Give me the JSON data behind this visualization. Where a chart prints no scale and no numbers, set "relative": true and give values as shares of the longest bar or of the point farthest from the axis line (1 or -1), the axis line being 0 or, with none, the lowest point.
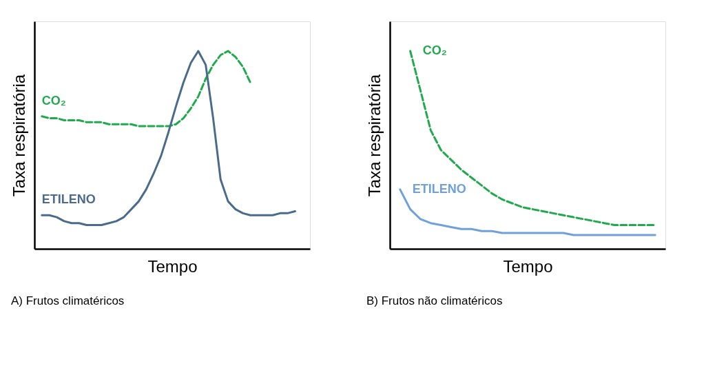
{
  "chart_data": [
    {
      "type": "line",
      "relative": true,
      "xlabel": "Tempo",
      "ylabel": "Taxa respiratória",
      "annotations": [
        "A) Frutos climatéricos"
      ],
      "tick_labels": false,
      "grid": false,
      "categories": [
        null,
        null,
        null,
        null,
        null,
        null,
        null,
        null,
        null,
        null,
        null,
        null,
        null,
        null,
        null,
        null,
        null,
        null,
        null,
        null,
        null,
        null,
        null,
        null,
        null,
        null,
        null,
        null,
        null,
        null,
        null,
        null,
        null,
        null,
        null,
        null
      ],
      "series": [
        {
          "name": "CO₂",
          "color": "#22a94f",
          "line_style": "dashed",
          "values": [
            0.67,
            0.66,
            0.66,
            0.65,
            0.65,
            0.65,
            0.64,
            0.64,
            0.64,
            0.63,
            0.63,
            0.63,
            0.63,
            0.62,
            0.62,
            0.62,
            0.62,
            0.62,
            0.63,
            0.66,
            0.71,
            0.77,
            0.86,
            0.93,
            0.98,
            1.0,
            0.97,
            0.92,
            0.84,
            null,
            null,
            null,
            null,
            null,
            null,
            null
          ]
        },
        {
          "name": "ETILENO",
          "color": "#4a6b8a",
          "line_style": "solid",
          "values": [
            0.17,
            0.17,
            0.16,
            0.14,
            0.13,
            0.13,
            0.12,
            0.12,
            0.12,
            0.13,
            0.14,
            0.16,
            0.2,
            0.24,
            0.3,
            0.38,
            0.47,
            0.59,
            0.72,
            0.84,
            0.94,
            1.0,
            0.93,
            0.66,
            0.35,
            0.24,
            0.2,
            0.18,
            0.17,
            0.17,
            0.17,
            0.17,
            0.18,
            0.18,
            0.19,
            null
          ]
        }
      ]
    },
    {
      "type": "line",
      "relative": true,
      "xlabel": "Tempo",
      "ylabel": "Taxa respiratória",
      "annotations": [
        "B) Frutos não climatéricos"
      ],
      "tick_labels": false,
      "grid": false,
      "categories": [
        null,
        null,
        null,
        null,
        null,
        null,
        null,
        null,
        null,
        null,
        null,
        null,
        null,
        null,
        null,
        null,
        null,
        null,
        null,
        null,
        null,
        null,
        null,
        null,
        null,
        null
      ],
      "series": [
        {
          "name": "CO₂",
          "color": "#22a94f",
          "line_style": "dashed",
          "values": [
            null,
            1.0,
            0.8,
            0.6,
            0.5,
            0.45,
            0.4,
            0.36,
            0.32,
            0.28,
            0.25,
            0.23,
            0.21,
            0.2,
            0.19,
            0.18,
            0.17,
            0.16,
            0.15,
            0.14,
            0.13,
            0.12,
            0.12,
            0.12,
            0.12,
            0.12
          ]
        },
        {
          "name": "ETILENO",
          "color": "#6fa0d8",
          "line_style": "solid",
          "values": [
            0.3,
            0.2,
            0.15,
            0.13,
            0.12,
            0.11,
            0.1,
            0.1,
            0.09,
            0.09,
            0.08,
            0.08,
            0.08,
            0.08,
            0.08,
            0.08,
            0.08,
            0.07,
            0.07,
            0.07,
            0.07,
            0.07,
            0.07,
            0.07,
            0.07,
            0.07
          ]
        }
      ]
    }
  ]
}
